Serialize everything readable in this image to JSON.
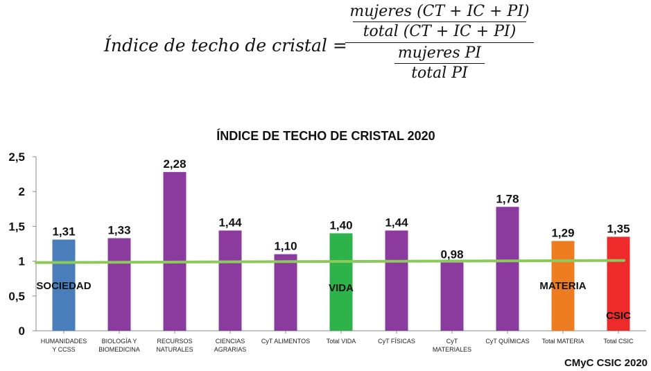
{
  "formula": {
    "lhs": "Índice de techo de cristal =",
    "top_numerator": "mujeres (CT + IC + PI)",
    "top_denominator": "total (CT + IC + PI)",
    "bottom_numerator": "mujeres PI",
    "bottom_denominator": "total PI"
  },
  "chart_data": {
    "type": "bar",
    "title": "ÍNDICE DE TECHO DE CRISTAL 2020",
    "categories": [
      [
        "HUMANIDADES",
        "Y CCSS"
      ],
      [
        "BIOLOGÍA Y",
        "BIOMEDICINA"
      ],
      [
        "RECURSOS",
        "NATURALES"
      ],
      [
        "CIENCIAS",
        "AGRARIAS"
      ],
      [
        "CyT  ALIMENTOS"
      ],
      [
        "Total VIDA"
      ],
      [
        "CyT FÍSICAS"
      ],
      [
        "CyT",
        "MATERIALES"
      ],
      [
        "CyT QUÍMICAS"
      ],
      [
        "Total MATERIA"
      ],
      [
        "Total CSIC"
      ]
    ],
    "values": [
      1.31,
      1.33,
      2.28,
      1.44,
      1.1,
      1.4,
      1.44,
      0.98,
      1.78,
      1.29,
      1.35
    ],
    "value_labels": [
      "1,31",
      "1,33",
      "2,28",
      "1,44",
      "1,10",
      "1,40",
      "1,44",
      "0,98",
      "1,78",
      "1,29",
      "1,35"
    ],
    "bar_colors": [
      "#4a7ebb",
      "#8b3a9e",
      "#8b3a9e",
      "#8b3a9e",
      "#8b3a9e",
      "#2db34a",
      "#8b3a9e",
      "#8b3a9e",
      "#8b3a9e",
      "#ee7d22",
      "#ee2b2b"
    ],
    "yticks": [
      "0",
      "0,5",
      "1",
      "1,5",
      "2",
      "2,5"
    ],
    "ylim": [
      0,
      2.5
    ],
    "grid": false,
    "reference_line": {
      "value": 1,
      "color": "#8dc95a"
    },
    "annotations": [
      {
        "text": "SOCIEDAD",
        "category_index": 0,
        "y": 0.6
      },
      {
        "text": "VIDA",
        "category_index": 5,
        "y": 0.57
      },
      {
        "text": "MATERIA",
        "category_index": 9,
        "y": 0.6
      },
      {
        "text": "CSIC",
        "category_index": 10,
        "y": 0.17
      }
    ],
    "credit": "CMyC CSIC 2020"
  }
}
